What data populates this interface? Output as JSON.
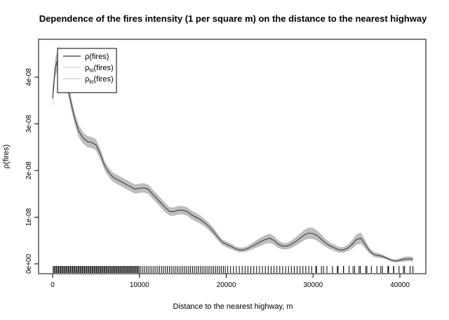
{
  "chart_data": {
    "type": "line",
    "title": "Dependence of the fires intensity (1 per square m) on the distance to the nearest highway",
    "xlabel": "Distance to the nearest highway, m",
    "ylabel": "ρ(fires)",
    "xlim": [
      0,
      42000
    ],
    "ylim": [
      0,
      4.6e-08
    ],
    "x_ticks": [
      0,
      10000,
      20000,
      30000,
      40000
    ],
    "x_tick_labels": [
      "0",
      "10000",
      "20000",
      "30000",
      "40000"
    ],
    "y_ticks": [
      0,
      1e-08,
      2e-08,
      3e-08,
      4e-08
    ],
    "y_tick_labels": [
      "0e+00",
      "1e-08",
      "2e-08",
      "3e-08",
      "4e-08"
    ],
    "legend": {
      "placement": "top-left",
      "entries": [
        {
          "base": "ρ",
          "sub": "",
          "rest": "(fires)",
          "color": "#333333"
        },
        {
          "base": "ρ",
          "sub": "hi",
          "rest": "(fires)",
          "color": "#d0d0d0"
        },
        {
          "base": "ρ",
          "sub": "lo",
          "rest": "(fires)",
          "color": "#d0d0d0"
        }
      ]
    },
    "colors": {
      "line": "#333333",
      "band": "#bdbdbd",
      "rug": "#000000"
    },
    "series": [
      {
        "name": "ρ(fires)",
        "x": [
          0,
          300,
          700,
          1000,
          1500,
          2000,
          2500,
          3000,
          3500,
          4000,
          4500,
          5000,
          5500,
          6000,
          6500,
          7000,
          7500,
          8000,
          8500,
          9000,
          9500,
          10000,
          10500,
          11000,
          11500,
          12000,
          12500,
          13000,
          13500,
          14000,
          14500,
          15000,
          15500,
          16000,
          16500,
          17000,
          17500,
          18000,
          18500,
          19000,
          19500,
          20000,
          20500,
          21000,
          21500,
          22000,
          22500,
          23000,
          23500,
          24000,
          24500,
          25000,
          25500,
          26000,
          26500,
          27000,
          27500,
          28000,
          28500,
          29000,
          29500,
          30000,
          30500,
          31000,
          31500,
          32000,
          32500,
          33000,
          33500,
          34000,
          34500,
          35000,
          35500,
          36000,
          36500,
          37000,
          37500,
          38000,
          38500,
          39000,
          39500,
          40000,
          40500,
          41000,
          41500
        ],
        "y": [
          3.55e-08,
          4.2e-08,
          4.45e-08,
          4.4e-08,
          4.05e-08,
          3.55e-08,
          3.15e-08,
          2.85e-08,
          2.7e-08,
          2.62e-08,
          2.6e-08,
          2.55e-08,
          2.35e-08,
          2.1e-08,
          1.95e-08,
          1.85e-08,
          1.8e-08,
          1.75e-08,
          1.7e-08,
          1.65e-08,
          1.6e-08,
          1.62e-08,
          1.63e-08,
          1.6e-08,
          1.5e-08,
          1.4e-08,
          1.3e-08,
          1.2e-08,
          1.12e-08,
          1.12e-08,
          1.15e-08,
          1.15e-08,
          1.12e-08,
          1.05e-08,
          1e-08,
          9.5e-09,
          8.8e-09,
          8e-09,
          7e-09,
          5.8e-09,
          4.7e-09,
          4.2e-09,
          3.8e-09,
          3.3e-09,
          3e-09,
          3e-09,
          3.3e-09,
          3.8e-09,
          4.3e-09,
          4.8e-09,
          5.2e-09,
          5.5e-09,
          5e-09,
          4.2e-09,
          3.8e-09,
          3.8e-09,
          4.2e-09,
          4.8e-09,
          5.5e-09,
          6.2e-09,
          6.6e-09,
          6.5e-09,
          6e-09,
          5.2e-09,
          4.4e-09,
          3.8e-09,
          3.4e-09,
          3e-09,
          3e-09,
          3.4e-09,
          4.2e-09,
          5.2e-09,
          5.5e-09,
          4.2e-09,
          2.8e-09,
          2e-09,
          1.8e-09,
          1.6e-09,
          1.2e-09,
          8e-10,
          6e-10,
          8e-10,
          1e-09,
          1.1e-09,
          1e-09
        ],
        "lo": [
          3.35e-08,
          4e-08,
          4.25e-08,
          4.2e-08,
          3.9e-08,
          3.42e-08,
          3.02e-08,
          2.72e-08,
          2.58e-08,
          2.5e-08,
          2.48e-08,
          2.43e-08,
          2.24e-08,
          2e-08,
          1.85e-08,
          1.75e-08,
          1.7e-08,
          1.65e-08,
          1.6e-08,
          1.55e-08,
          1.5e-08,
          1.52e-08,
          1.53e-08,
          1.5e-08,
          1.4e-08,
          1.3e-08,
          1.2e-08,
          1.1e-08,
          1.03e-08,
          1.03e-08,
          1.06e-08,
          1.06e-08,
          1.03e-08,
          9.6e-09,
          9.1e-09,
          8.6e-09,
          8e-09,
          7.2e-09,
          6.2e-09,
          5.1e-09,
          4.1e-09,
          3.6e-09,
          3.2e-09,
          2.8e-09,
          2.5e-09,
          2.5e-09,
          2.7e-09,
          3.1e-09,
          3.5e-09,
          3.9e-09,
          4.3e-09,
          4.5e-09,
          4.1e-09,
          3.4e-09,
          3.1e-09,
          3.1e-09,
          3.4e-09,
          3.9e-09,
          4.5e-09,
          5.1e-09,
          5.4e-09,
          5.3e-09,
          4.9e-09,
          4.2e-09,
          3.6e-09,
          3.1e-09,
          2.7e-09,
          2.4e-09,
          2.4e-09,
          2.7e-09,
          3.3e-09,
          4.1e-09,
          4.3e-09,
          3.3e-09,
          2.2e-09,
          1.5e-09,
          1.3e-09,
          1.2e-09,
          9e-10,
          5e-10,
          3e-10,
          4e-10,
          5e-10,
          6e-10,
          5e-10
        ],
        "hi": [
          3.75e-08,
          4.4e-08,
          4.65e-08,
          4.6e-08,
          4.2e-08,
          3.68e-08,
          3.28e-08,
          2.98e-08,
          2.82e-08,
          2.74e-08,
          2.72e-08,
          2.67e-08,
          2.46e-08,
          2.2e-08,
          2.05e-08,
          1.95e-08,
          1.9e-08,
          1.85e-08,
          1.8e-08,
          1.75e-08,
          1.7e-08,
          1.72e-08,
          1.73e-08,
          1.7e-08,
          1.6e-08,
          1.5e-08,
          1.4e-08,
          1.3e-08,
          1.21e-08,
          1.21e-08,
          1.24e-08,
          1.24e-08,
          1.21e-08,
          1.14e-08,
          1.09e-08,
          1.04e-08,
          9.6e-09,
          8.8e-09,
          7.8e-09,
          6.5e-09,
          5.3e-09,
          4.8e-09,
          4.4e-09,
          3.8e-09,
          3.5e-09,
          3.5e-09,
          3.9e-09,
          4.5e-09,
          5.1e-09,
          5.7e-09,
          6.1e-09,
          6.5e-09,
          5.9e-09,
          5e-09,
          4.5e-09,
          4.5e-09,
          5e-09,
          5.7e-09,
          6.5e-09,
          7.3e-09,
          7.8e-09,
          7.7e-09,
          7.1e-09,
          6.2e-09,
          5.2e-09,
          4.5e-09,
          4.1e-09,
          3.6e-09,
          3.6e-09,
          4.1e-09,
          5.1e-09,
          6.3e-09,
          6.7e-09,
          5.1e-09,
          3.4e-09,
          2.5e-09,
          2.3e-09,
          2e-09,
          1.5e-09,
          1.1e-09,
          9e-10,
          1.2e-09,
          1.5e-09,
          1.6e-09,
          1.5e-09
        ]
      }
    ],
    "rug": {
      "dense_segments": [
        [
          0,
          10000,
          80
        ],
        [
          10000,
          20000,
          45
        ],
        [
          20000,
          30000,
          30
        ],
        [
          30000,
          41500,
          18
        ]
      ],
      "sparse_x": [
        30400,
        31200,
        32800,
        33500,
        34600,
        35300,
        36200,
        37800,
        38700,
        39300,
        40400,
        41500
      ]
    }
  }
}
